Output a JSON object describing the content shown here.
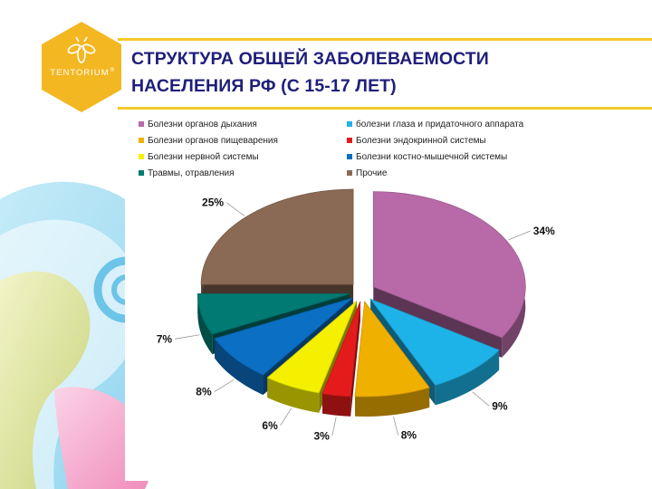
{
  "slide": {
    "title_line1": "СТРУКТУРА ОБЩЕЙ ЗАБОЛЕВАЕМОСТИ",
    "title_line2": "НАСЕЛЕНИЯ РФ (С 15-17 ЛЕТ)"
  },
  "logo": {
    "text": "TENTORIUM",
    "mark": "®",
    "color": "#f3b722"
  },
  "accent_color": "#f6c82a",
  "title_color": "#1f1f7a",
  "chart_data": {
    "type": "pie",
    "style": "3d-exploded",
    "legend_position": "top",
    "slices": [
      {
        "name": "Болезни органов дыхания",
        "value": 34,
        "label": "34%",
        "color": "#b86aa8"
      },
      {
        "name": "болезни глаза и придаточного аппарата",
        "value": 9,
        "label": "9%",
        "color": "#1eb3e8"
      },
      {
        "name": "Болезни органов пищеварения",
        "value": 8,
        "label": "8%",
        "color": "#f0b000"
      },
      {
        "name": "Болезни эндокринной системы",
        "value": 3,
        "label": "3%",
        "color": "#e51b1b"
      },
      {
        "name": "Болезни нервной системы",
        "value": 6,
        "label": "6%",
        "color": "#f5f000"
      },
      {
        "name": "Болезни костно-мышечной системы",
        "value": 8,
        "label": "8%",
        "color": "#0b6fc4"
      },
      {
        "name": "Травмы, отравления",
        "value": 7,
        "label": "7%",
        "color": "#007a73"
      },
      {
        "name": "Прочие",
        "value": 25,
        "label": "25%",
        "color": "#8b6a55"
      }
    ],
    "legend_order": [
      0,
      1,
      2,
      3,
      4,
      5,
      6,
      7
    ]
  }
}
